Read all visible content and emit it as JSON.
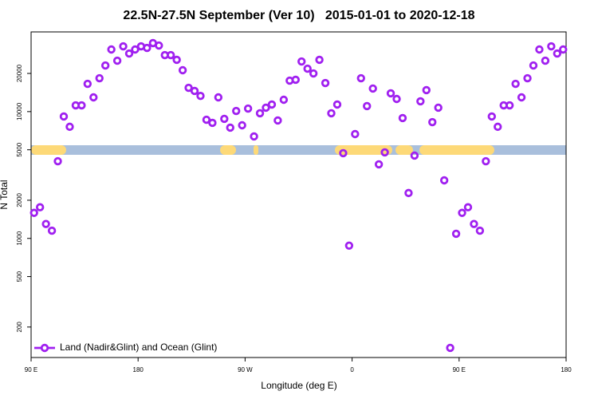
{
  "chart_data": {
    "type": "scatter",
    "title": "22.5N-27.5N September (Ver 10)   2015-01-01 to 2020-12-18",
    "x_label": "Longitude (deg E)",
    "y_label": "N Total",
    "log_y": true,
    "xlim": [
      90,
      540
    ],
    "xticks": [
      {
        "value": 90,
        "label": "90 E"
      },
      180,
      {
        "value": 270,
        "label": "90 W"
      },
      {
        "value": 360,
        "label": "0"
      },
      {
        "value": 450,
        "label": "90 E"
      },
      {
        "value": 540,
        "label": "180"
      }
    ],
    "ylim": [
      115,
      42500
    ],
    "yticks": [
      200,
      500,
      1000,
      2000,
      5000,
      10000,
      20000
    ],
    "legend": "bottom-left",
    "x": [
      92.5,
      97.5,
      102.5,
      107.5,
      112.5,
      117.5,
      122.5,
      127.5,
      132.5,
      137.5,
      142.5,
      147.5,
      152.5,
      157.5,
      162.5,
      167.5,
      172.5,
      177.5,
      182.5,
      187.5,
      192.5,
      197.5,
      202.5,
      207.5,
      212.5,
      217.5,
      222.5,
      227.5,
      232.5,
      237.5,
      242.5,
      247.5,
      252.5,
      257.5,
      262.5,
      267.5,
      272.5,
      277.5,
      282.5,
      287.5,
      292.5,
      297.5,
      302.5,
      307.5,
      312.5,
      317.5,
      322.5,
      327.5,
      332.5,
      337.5,
      342.5,
      347.5,
      352.5,
      357.5,
      362.5,
      367.5,
      372.5,
      377.5,
      382.5,
      387.5,
      392.5,
      397.5,
      402.5,
      407.5,
      412.5,
      417.5,
      422.5,
      427.5,
      432.5,
      437.5,
      442.5,
      447.5,
      452.5,
      457.5,
      462.5,
      467.5,
      472.5,
      477.5,
      482.5,
      487.5,
      492.5,
      497.5,
      502.5,
      507.5,
      512.5,
      517.5,
      522.5,
      527.5,
      532.5,
      537.5
    ],
    "series": [
      {
        "name": "Land (Nadir&Glint) and Ocean (Glint)",
        "color": "#a020f0",
        "values": [
          1590,
          1760,
          1300,
          1150,
          4060,
          9150,
          7590,
          11200,
          11200,
          16560,
          12950,
          18330,
          23100,
          30900,
          25200,
          32700,
          28700,
          30900,
          32700,
          31800,
          34700,
          33200,
          27900,
          27900,
          25600,
          21200,
          15400,
          14550,
          13300,
          8630,
          8150,
          12950,
          8770,
          7470,
          10120,
          7800,
          10570,
          6370,
          9700,
          10740,
          11370,
          8510,
          12400,
          17550,
          17820,
          24840,
          21800,
          20000,
          25600,
          16800,
          9700,
          11370,
          4700,
          877,
          6650,
          18330,
          11050,
          15200,
          3840,
          4770,
          13930,
          12580,
          8890,
          2280,
          4500,
          12050,
          14760,
          8260,
          10740,
          2870,
          137,
          1088,
          1590,
          1760,
          1300,
          1150,
          4060,
          9150,
          7590,
          11200,
          11200,
          16560,
          12950,
          18330,
          23100,
          30900,
          25200,
          32700,
          28700,
          30900
        ]
      }
    ]
  }
}
